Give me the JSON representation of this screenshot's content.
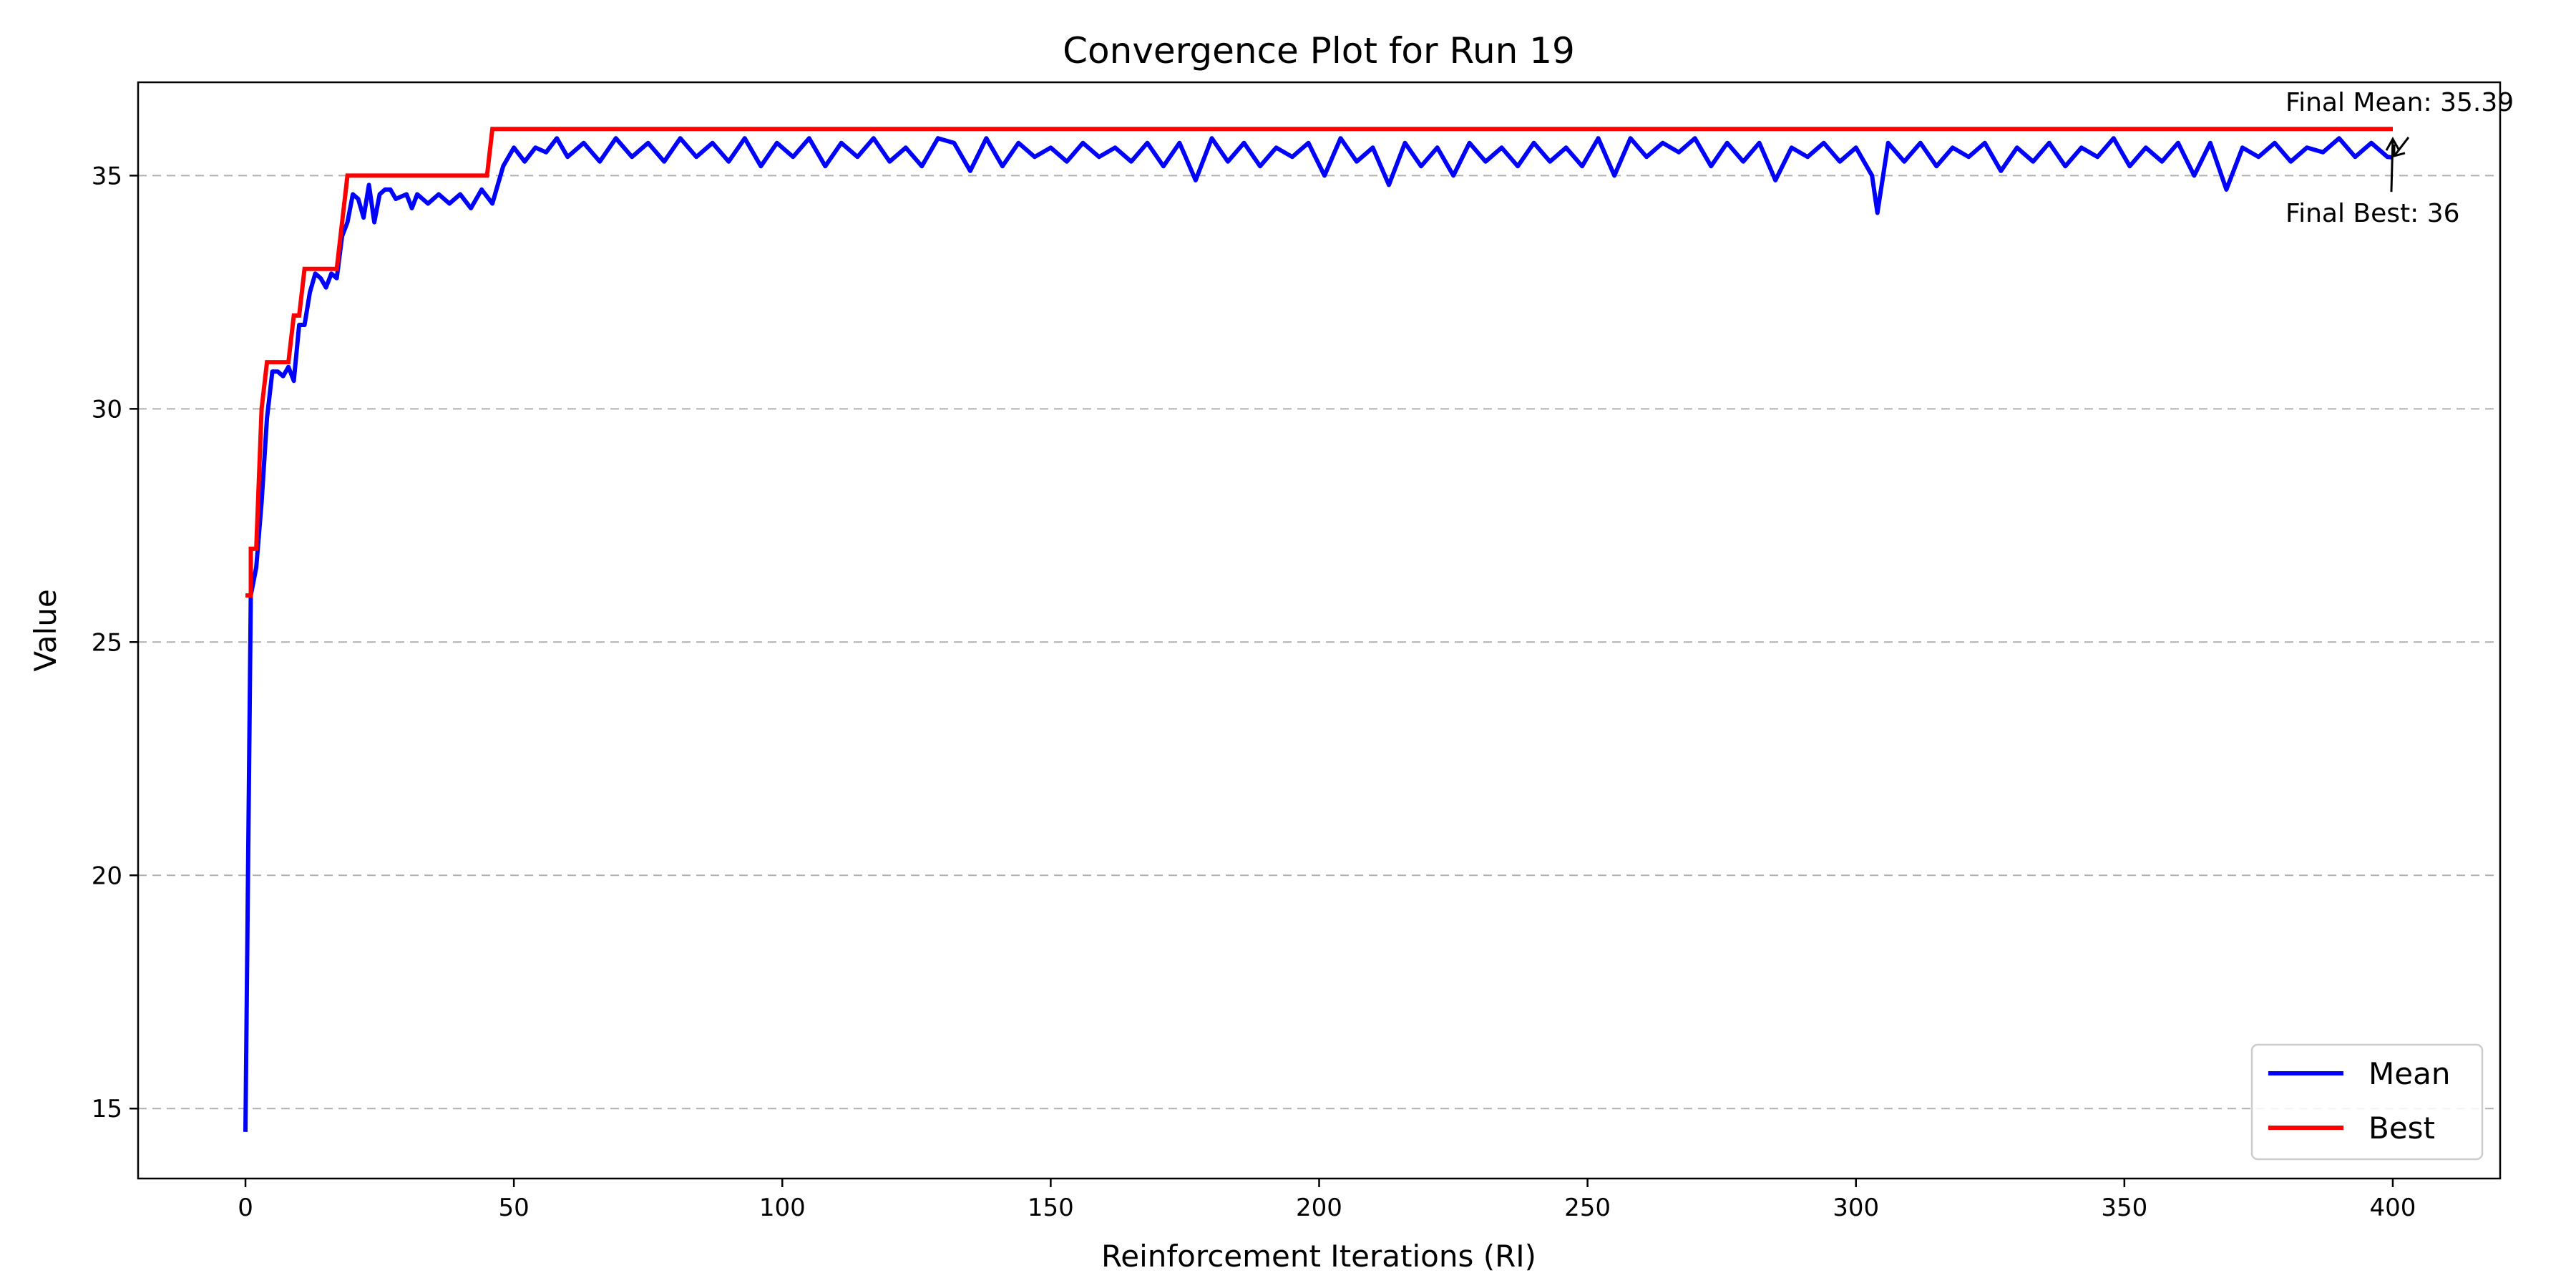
{
  "chart_data": {
    "type": "line",
    "title": "Convergence Plot for Run 19",
    "xlabel": "Reinforcement Iterations (RI)",
    "ylabel": "Value",
    "xlim": [
      -20,
      420
    ],
    "ylim": [
      13.5,
      37.0
    ],
    "xticks": [
      0,
      50,
      100,
      150,
      200,
      250,
      300,
      350,
      400
    ],
    "yticks": [
      15,
      20,
      25,
      30,
      35
    ],
    "grid": "y-dashed",
    "legend_position": "lower-right",
    "colors": {
      "mean": "#0000ff",
      "best": "#ff0000",
      "grid": "#b0b0b0"
    },
    "series": [
      {
        "name": "Mean",
        "color": "#0000ff",
        "points": [
          [
            0,
            14.5
          ],
          [
            1,
            26.0
          ],
          [
            2,
            26.6
          ],
          [
            3,
            28.0
          ],
          [
            4,
            29.8
          ],
          [
            5,
            30.8
          ],
          [
            6,
            30.8
          ],
          [
            7,
            30.7
          ],
          [
            8,
            30.9
          ],
          [
            9,
            30.6
          ],
          [
            10,
            31.8
          ],
          [
            11,
            31.8
          ],
          [
            12,
            32.5
          ],
          [
            13,
            32.9
          ],
          [
            14,
            32.8
          ],
          [
            15,
            32.6
          ],
          [
            16,
            32.9
          ],
          [
            17,
            32.8
          ],
          [
            18,
            33.7
          ],
          [
            19,
            34.0
          ],
          [
            20,
            34.6
          ],
          [
            21,
            34.5
          ],
          [
            22,
            34.1
          ],
          [
            23,
            34.8
          ],
          [
            24,
            34.0
          ],
          [
            25,
            34.6
          ],
          [
            26,
            34.7
          ],
          [
            27,
            34.7
          ],
          [
            28,
            34.5
          ],
          [
            30,
            34.6
          ],
          [
            31,
            34.3
          ],
          [
            32,
            34.6
          ],
          [
            34,
            34.4
          ],
          [
            36,
            34.6
          ],
          [
            38,
            34.4
          ],
          [
            40,
            34.6
          ],
          [
            42,
            34.3
          ],
          [
            44,
            34.7
          ],
          [
            46,
            34.4
          ],
          [
            48,
            35.2
          ],
          [
            50,
            35.6
          ],
          [
            52,
            35.3
          ],
          [
            54,
            35.6
          ],
          [
            56,
            35.5
          ],
          [
            58,
            35.8
          ],
          [
            60,
            35.4
          ],
          [
            63,
            35.7
          ],
          [
            66,
            35.3
          ],
          [
            69,
            35.8
          ],
          [
            72,
            35.4
          ],
          [
            75,
            35.7
          ],
          [
            78,
            35.3
          ],
          [
            81,
            35.8
          ],
          [
            84,
            35.4
          ],
          [
            87,
            35.7
          ],
          [
            90,
            35.3
          ],
          [
            93,
            35.8
          ],
          [
            96,
            35.2
          ],
          [
            99,
            35.7
          ],
          [
            102,
            35.4
          ],
          [
            105,
            35.8
          ],
          [
            108,
            35.2
          ],
          [
            111,
            35.7
          ],
          [
            114,
            35.4
          ],
          [
            117,
            35.8
          ],
          [
            120,
            35.3
          ],
          [
            123,
            35.6
          ],
          [
            126,
            35.2
          ],
          [
            129,
            35.8
          ],
          [
            132,
            35.7
          ],
          [
            135,
            35.1
          ],
          [
            138,
            35.8
          ],
          [
            141,
            35.2
          ],
          [
            144,
            35.7
          ],
          [
            147,
            35.4
          ],
          [
            150,
            35.6
          ],
          [
            153,
            35.3
          ],
          [
            156,
            35.7
          ],
          [
            159,
            35.4
          ],
          [
            162,
            35.6
          ],
          [
            165,
            35.3
          ],
          [
            168,
            35.7
          ],
          [
            171,
            35.2
          ],
          [
            174,
            35.7
          ],
          [
            177,
            34.9
          ],
          [
            180,
            35.8
          ],
          [
            183,
            35.3
          ],
          [
            186,
            35.7
          ],
          [
            189,
            35.2
          ],
          [
            192,
            35.6
          ],
          [
            195,
            35.4
          ],
          [
            198,
            35.7
          ],
          [
            201,
            35.0
          ],
          [
            204,
            35.8
          ],
          [
            207,
            35.3
          ],
          [
            210,
            35.6
          ],
          [
            213,
            34.8
          ],
          [
            216,
            35.7
          ],
          [
            219,
            35.2
          ],
          [
            222,
            35.6
          ],
          [
            225,
            35.0
          ],
          [
            228,
            35.7
          ],
          [
            231,
            35.3
          ],
          [
            234,
            35.6
          ],
          [
            237,
            35.2
          ],
          [
            240,
            35.7
          ],
          [
            243,
            35.3
          ],
          [
            246,
            35.6
          ],
          [
            249,
            35.2
          ],
          [
            252,
            35.8
          ],
          [
            255,
            35.0
          ],
          [
            258,
            35.8
          ],
          [
            261,
            35.4
          ],
          [
            264,
            35.7
          ],
          [
            267,
            35.5
          ],
          [
            270,
            35.8
          ],
          [
            273,
            35.2
          ],
          [
            276,
            35.7
          ],
          [
            279,
            35.3
          ],
          [
            282,
            35.7
          ],
          [
            285,
            34.9
          ],
          [
            288,
            35.6
          ],
          [
            291,
            35.4
          ],
          [
            294,
            35.7
          ],
          [
            297,
            35.3
          ],
          [
            300,
            35.6
          ],
          [
            303,
            35.0
          ],
          [
            304,
            34.2
          ],
          [
            306,
            35.7
          ],
          [
            309,
            35.3
          ],
          [
            312,
            35.7
          ],
          [
            315,
            35.2
          ],
          [
            318,
            35.6
          ],
          [
            321,
            35.4
          ],
          [
            324,
            35.7
          ],
          [
            327,
            35.1
          ],
          [
            330,
            35.6
          ],
          [
            333,
            35.3
          ],
          [
            336,
            35.7
          ],
          [
            339,
            35.2
          ],
          [
            342,
            35.6
          ],
          [
            345,
            35.4
          ],
          [
            348,
            35.8
          ],
          [
            351,
            35.2
          ],
          [
            354,
            35.6
          ],
          [
            357,
            35.3
          ],
          [
            360,
            35.7
          ],
          [
            363,
            35.0
          ],
          [
            366,
            35.7
          ],
          [
            369,
            34.7
          ],
          [
            372,
            35.6
          ],
          [
            375,
            35.4
          ],
          [
            378,
            35.7
          ],
          [
            381,
            35.3
          ],
          [
            384,
            35.6
          ],
          [
            387,
            35.5
          ],
          [
            390,
            35.8
          ],
          [
            393,
            35.4
          ],
          [
            396,
            35.7
          ],
          [
            399,
            35.4
          ],
          [
            400,
            35.39
          ]
        ]
      },
      {
        "name": "Best",
        "color": "#ff0000",
        "points": [
          [
            0,
            26
          ],
          [
            1,
            26
          ],
          [
            1,
            27
          ],
          [
            2,
            27
          ],
          [
            3,
            30
          ],
          [
            4,
            31
          ],
          [
            8,
            31
          ],
          [
            9,
            32
          ],
          [
            10,
            32
          ],
          [
            11,
            33
          ],
          [
            17,
            33
          ],
          [
            19,
            35
          ],
          [
            45,
            35
          ],
          [
            46,
            36
          ],
          [
            400,
            36
          ]
        ]
      }
    ],
    "annotations": [
      {
        "text": "Final Mean: 35.39",
        "x": 400,
        "y": 35.39
      },
      {
        "text": "Final Best: 36",
        "x": 400,
        "y": 36
      }
    ]
  }
}
